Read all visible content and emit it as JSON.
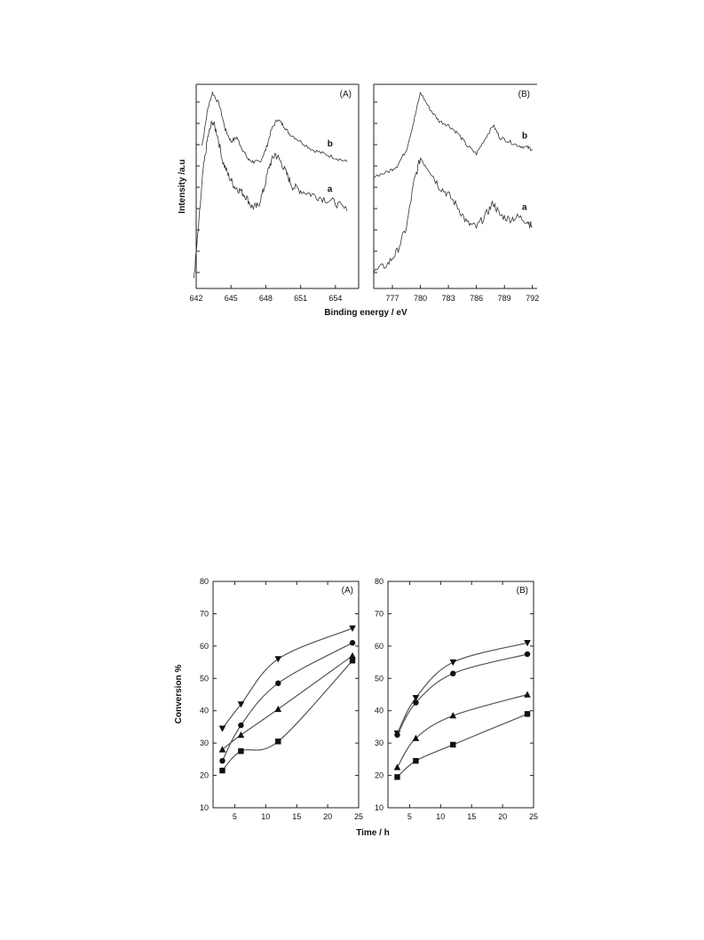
{
  "figure1": {
    "ylabel": "Intensity /a.u",
    "xlabel": "Binding energy / eV",
    "panels": [
      {
        "label": "(A)",
        "xticks": [
          "642",
          "645",
          "648",
          "651",
          "654"
        ],
        "xrange": [
          642,
          656
        ],
        "curve_labels": [
          "b",
          "a"
        ]
      },
      {
        "label": "(B)",
        "xticks": [
          "777",
          "780",
          "783",
          "786",
          "789",
          "792"
        ],
        "xrange": [
          775,
          792.5
        ],
        "curve_labels": [
          "b",
          "a"
        ]
      }
    ]
  },
  "figure2": {
    "ylabel": "Conversion %",
    "xlabel": "Time / h",
    "yticks": [
      "10",
      "20",
      "30",
      "40",
      "50",
      "60",
      "70",
      "80"
    ],
    "xticks": [
      "5",
      "10",
      "15",
      "20",
      "25"
    ],
    "panels": [
      {
        "label": "(A)"
      },
      {
        "label": "(B)"
      }
    ]
  },
  "chart_data": [
    {
      "type": "line",
      "panel": "(A)",
      "xlabel": "Binding energy / eV",
      "ylabel": "Intensity /a.u",
      "xlim": [
        642,
        656
      ],
      "series": [
        {
          "name": "b",
          "x": [
            642.5,
            643.0,
            643.4,
            644.0,
            644.5,
            645.0,
            645.5,
            646.0,
            646.5,
            647.0,
            647.5,
            648.0,
            648.5,
            649.0,
            649.5,
            650.0,
            651.0,
            652.0,
            653.0,
            654.0,
            655.0
          ],
          "y": [
            0.7,
            0.88,
            0.96,
            0.9,
            0.78,
            0.72,
            0.74,
            0.68,
            0.63,
            0.62,
            0.62,
            0.68,
            0.78,
            0.83,
            0.8,
            0.76,
            0.72,
            0.68,
            0.66,
            0.64,
            0.62
          ]
        },
        {
          "name": "a",
          "x": [
            641.8,
            642.2,
            642.6,
            643.0,
            643.4,
            643.8,
            644.3,
            644.8,
            645.3,
            645.8,
            646.3,
            646.8,
            647.3,
            647.8,
            648.3,
            648.8,
            649.3,
            649.8,
            650.3,
            651.0,
            652.0,
            653.0,
            654.0,
            655.0
          ],
          "y": [
            0.05,
            0.3,
            0.58,
            0.74,
            0.82,
            0.76,
            0.62,
            0.55,
            0.5,
            0.48,
            0.45,
            0.4,
            0.4,
            0.48,
            0.6,
            0.66,
            0.62,
            0.56,
            0.5,
            0.48,
            0.46,
            0.44,
            0.42,
            0.38
          ]
        }
      ]
    },
    {
      "type": "line",
      "panel": "(B)",
      "xlabel": "Binding energy / eV",
      "xlim": [
        775,
        792.5
      ],
      "series": [
        {
          "name": "b",
          "x": [
            775.0,
            776.5,
            777.5,
            778.5,
            779.3,
            780.0,
            781.0,
            782.0,
            783.0,
            784.0,
            785.0,
            786.0,
            787.0,
            787.8,
            788.5,
            789.5,
            790.5,
            791.5,
            792.0
          ],
          "y": [
            0.55,
            0.57,
            0.6,
            0.68,
            0.82,
            0.96,
            0.88,
            0.82,
            0.8,
            0.76,
            0.7,
            0.66,
            0.74,
            0.8,
            0.74,
            0.72,
            0.7,
            0.69,
            0.68
          ]
        },
        {
          "name": "a",
          "x": [
            775.0,
            776.5,
            777.5,
            778.5,
            779.3,
            780.0,
            781.0,
            782.0,
            783.0,
            784.0,
            785.0,
            786.0,
            787.0,
            787.8,
            788.5,
            789.5,
            790.5,
            791.5,
            792.0
          ],
          "y": [
            0.08,
            0.12,
            0.18,
            0.3,
            0.52,
            0.64,
            0.58,
            0.5,
            0.46,
            0.4,
            0.32,
            0.3,
            0.36,
            0.42,
            0.36,
            0.34,
            0.35,
            0.33,
            0.3
          ]
        }
      ]
    },
    {
      "type": "scatter",
      "panel": "(A)",
      "xlabel": "Time / h",
      "ylabel": "Conversion %",
      "xlim": [
        1.5,
        25
      ],
      "ylim": [
        10,
        80
      ],
      "series": [
        {
          "marker": "triangle-down",
          "x": [
            3,
            6,
            12,
            24
          ],
          "y": [
            34.5,
            42,
            56,
            65.5
          ]
        },
        {
          "marker": "circle",
          "x": [
            3,
            6,
            12,
            24
          ],
          "y": [
            24.5,
            35.5,
            48.5,
            61
          ]
        },
        {
          "marker": "triangle-up",
          "x": [
            3,
            6,
            12,
            24
          ],
          "y": [
            28,
            32.5,
            40.5,
            57
          ]
        },
        {
          "marker": "square",
          "x": [
            3,
            6,
            12,
            24
          ],
          "y": [
            21.5,
            27.5,
            30.5,
            55.5
          ]
        }
      ]
    },
    {
      "type": "scatter",
      "panel": "(B)",
      "xlabel": "Time / h",
      "xlim": [
        1.5,
        25
      ],
      "ylim": [
        10,
        80
      ],
      "series": [
        {
          "marker": "triangle-down",
          "x": [
            3,
            6,
            12,
            24
          ],
          "y": [
            33,
            44,
            55,
            61
          ]
        },
        {
          "marker": "circle",
          "x": [
            3,
            6,
            12,
            24
          ],
          "y": [
            32.5,
            42.5,
            51.5,
            57.5
          ]
        },
        {
          "marker": "triangle-up",
          "x": [
            3,
            6,
            12,
            24
          ],
          "y": [
            22.5,
            31.5,
            38.5,
            45
          ]
        },
        {
          "marker": "square",
          "x": [
            3,
            6,
            12,
            24
          ],
          "y": [
            19.5,
            24.5,
            29.5,
            39
          ]
        }
      ]
    }
  ]
}
